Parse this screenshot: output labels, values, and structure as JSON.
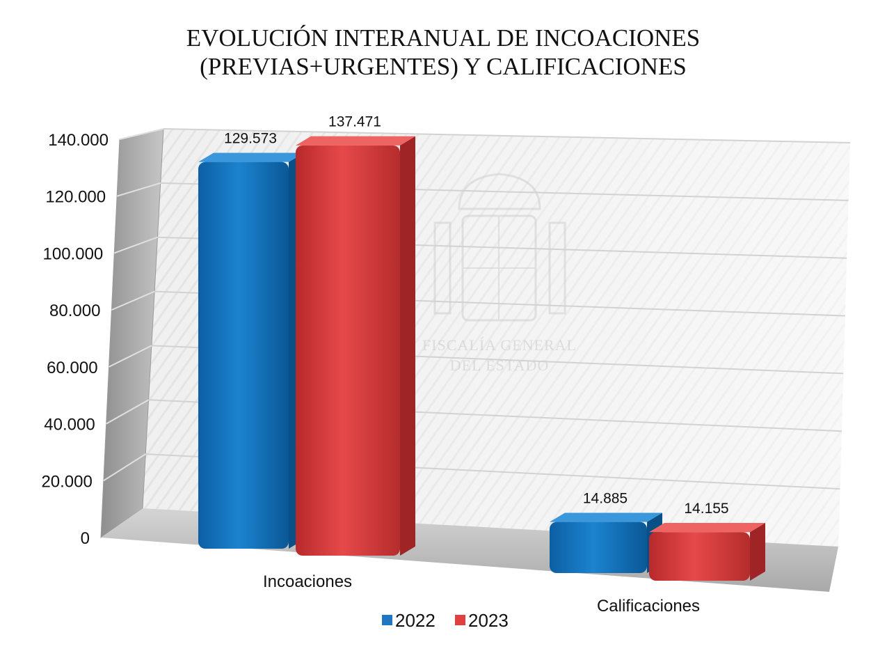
{
  "chart_data": {
    "type": "bar",
    "title": "EVOLUCIÓN INTERANUAL DE INCOACIONES (PREVIAS+URGENTES) Y CALIFICACIONES",
    "title_lines": [
      "EVOLUCIÓN INTERANUAL DE INCOACIONES",
      "(PREVIAS+URGENTES) Y CALIFICACIONES"
    ],
    "categories": [
      "Incoaciones",
      "Calificaciones"
    ],
    "series": [
      {
        "name": "2022",
        "values": [
          129573,
          14885
        ],
        "labels": [
          "129.573",
          "14.885"
        ],
        "color": "#1f77c4"
      },
      {
        "name": "2023",
        "values": [
          137471,
          14155
        ],
        "labels": [
          "137.471",
          "14.155"
        ],
        "color": "#e0403f"
      }
    ],
    "ylim": [
      0,
      140000
    ],
    "yticks": [
      0,
      20000,
      40000,
      60000,
      80000,
      100000,
      120000,
      140000
    ],
    "ytick_labels": [
      "0",
      "20.000",
      "40.000",
      "60.000",
      "80.000",
      "100.000",
      "120.000",
      "140.000"
    ],
    "xlabel": "",
    "ylabel": "",
    "grid": true,
    "legend_position": "bottom-center",
    "watermark": [
      "FISCALÍA GENERAL",
      "DEL ESTADO"
    ]
  }
}
